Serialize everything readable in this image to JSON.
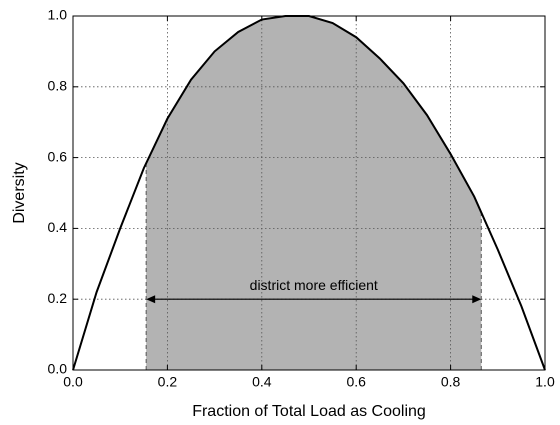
{
  "chart_data": {
    "type": "line",
    "xlabel": "Fraction of Total Load as Cooling",
    "ylabel": "Diversity",
    "x": [
      0,
      0.05,
      0.1,
      0.15,
      0.2,
      0.25,
      0.3,
      0.35,
      0.4,
      0.45,
      0.5,
      0.55,
      0.6,
      0.65,
      0.7,
      0.75,
      0.8,
      0.85,
      0.9,
      0.95,
      1.0
    ],
    "series": [
      {
        "color": "#000000",
        "values": [
          0,
          0.22,
          0.4,
          0.57,
          0.71,
          0.82,
          0.9,
          0.955,
          0.99,
          1.0,
          1.0,
          0.98,
          0.94,
          0.88,
          0.81,
          0.72,
          0.61,
          0.49,
          0.34,
          0.18,
          0
        ]
      }
    ],
    "shade": {
      "x": [
        0.155,
        0.865
      ],
      "color": "#b3b3b3"
    },
    "annotation": {
      "text": "district more efficient",
      "y": 0.2
    },
    "xlim": [
      0,
      1
    ],
    "ylim": [
      0,
      1
    ],
    "xticks": [
      {
        "value": 0,
        "label": "0.0"
      },
      0.2,
      0.4,
      0.6,
      0.8,
      {
        "value": 1,
        "label": "1.0"
      }
    ],
    "yticks": [
      {
        "value": 0,
        "label": "0.0"
      },
      0.2,
      0.4,
      0.6,
      0.8,
      {
        "value": 1,
        "label": "1.0"
      }
    ],
    "grid": true
  }
}
